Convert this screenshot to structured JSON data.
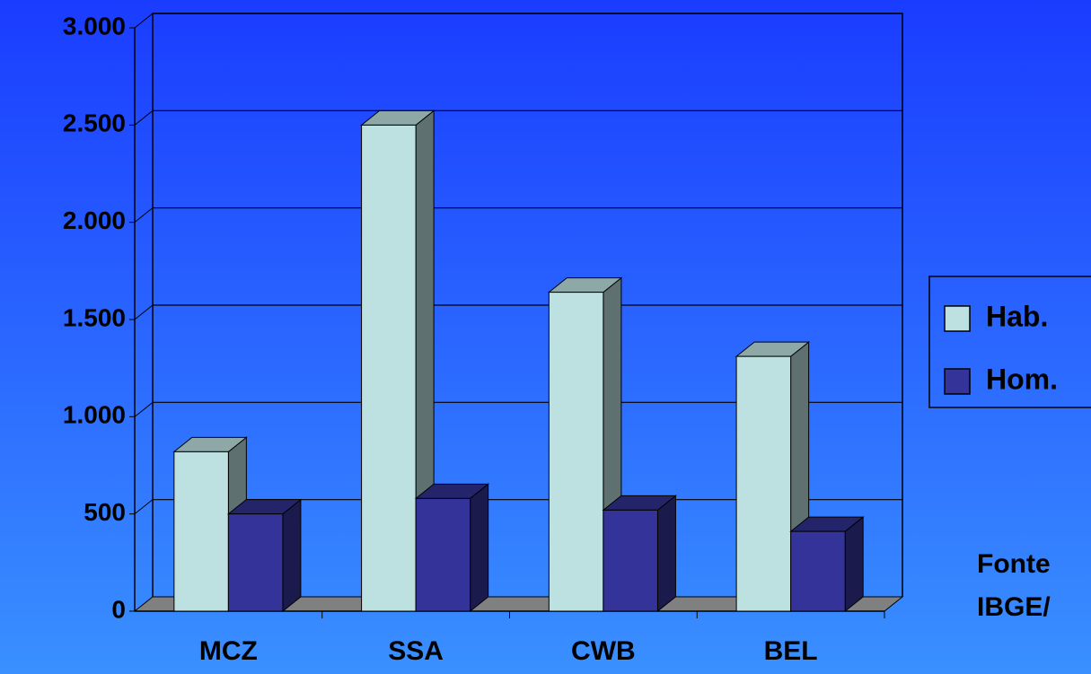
{
  "chart_data": {
    "type": "bar3d",
    "categories": [
      "MCZ",
      "SSA",
      "CWB",
      "BEL"
    ],
    "series": [
      {
        "name": "Hab.",
        "color": "#bde0e0",
        "values": [
          820,
          2500,
          1640,
          1310
        ]
      },
      {
        "name": "Hom.",
        "color": "#333399",
        "values": [
          500,
          580,
          520,
          410
        ]
      }
    ],
    "ylim": [
      0,
      3000
    ],
    "yticks": [
      0,
      500,
      {
        "value": 1000,
        "label": "1.000"
      },
      {
        "value": 1500,
        "label": "1.500"
      },
      {
        "value": 2000,
        "label": "2.000"
      },
      {
        "value": 2500,
        "label": "2.500"
      },
      {
        "value": 3000,
        "label": "3.000"
      }
    ],
    "grid": true,
    "legend": "right",
    "annotations": [
      "Fonte",
      "IBGE/"
    ]
  }
}
